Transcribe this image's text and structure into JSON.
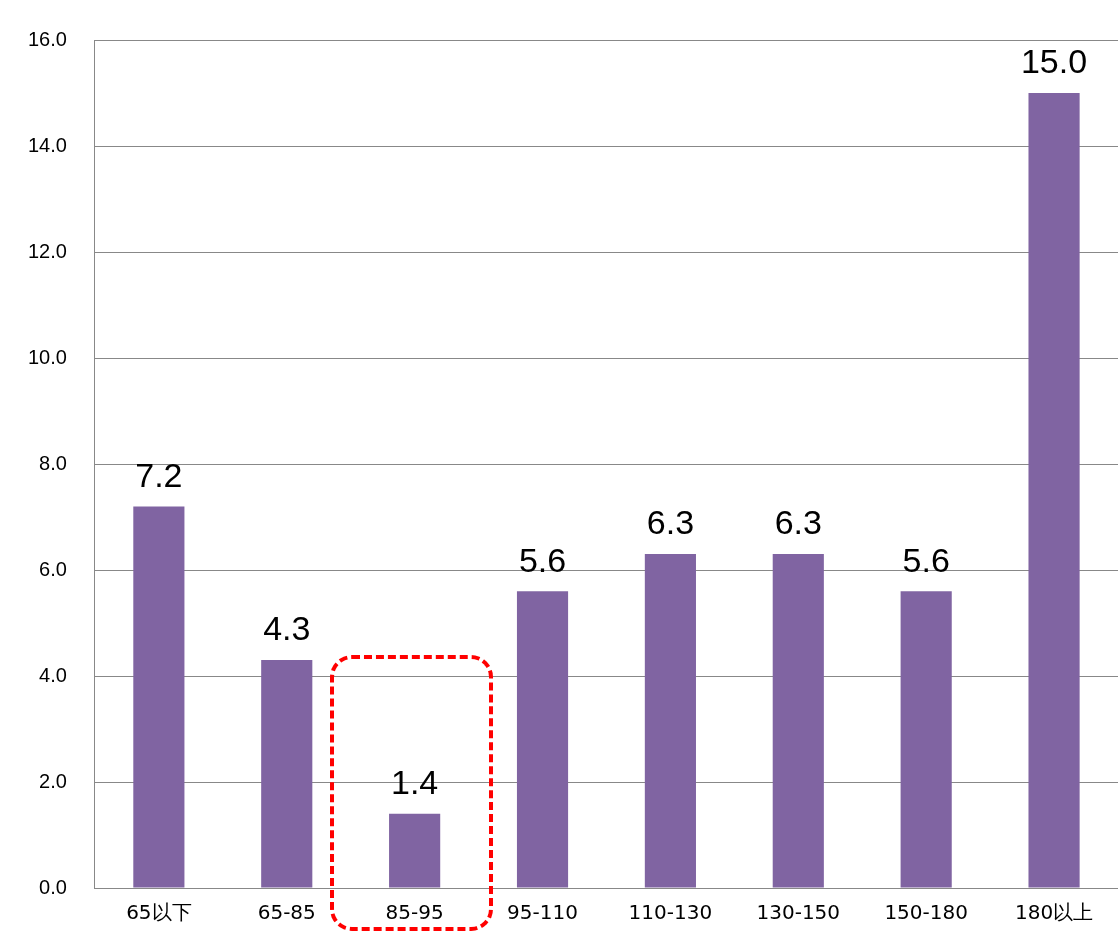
{
  "chart_data": {
    "type": "bar",
    "categories": [
      "65以下",
      "65-85",
      "85-95",
      "95-110",
      "110-130",
      "130-150",
      "150-180",
      "180以上"
    ],
    "values": [
      7.2,
      4.3,
      1.4,
      5.6,
      6.3,
      6.3,
      5.6,
      15.0
    ],
    "value_labels": [
      "7.2",
      "4.3",
      "1.4",
      "5.6",
      "6.3",
      "6.3",
      "5.6",
      "15.0"
    ],
    "color": "#8064a2",
    "ylim": [
      0,
      16
    ],
    "yticks": [
      {
        "value": 0,
        "label": "0.0"
      },
      {
        "value": 2,
        "label": "2.0"
      },
      {
        "value": 4,
        "label": "4.0"
      },
      {
        "value": 6,
        "label": "6.0"
      },
      {
        "value": 8,
        "label": "8.0"
      },
      {
        "value": 10,
        "label": "10.0"
      },
      {
        "value": 12,
        "label": "12.0"
      },
      {
        "value": 14,
        "label": "14.0"
      },
      {
        "value": 16,
        "label": "16.0"
      }
    ],
    "grid": "y",
    "legend": false
  }
}
